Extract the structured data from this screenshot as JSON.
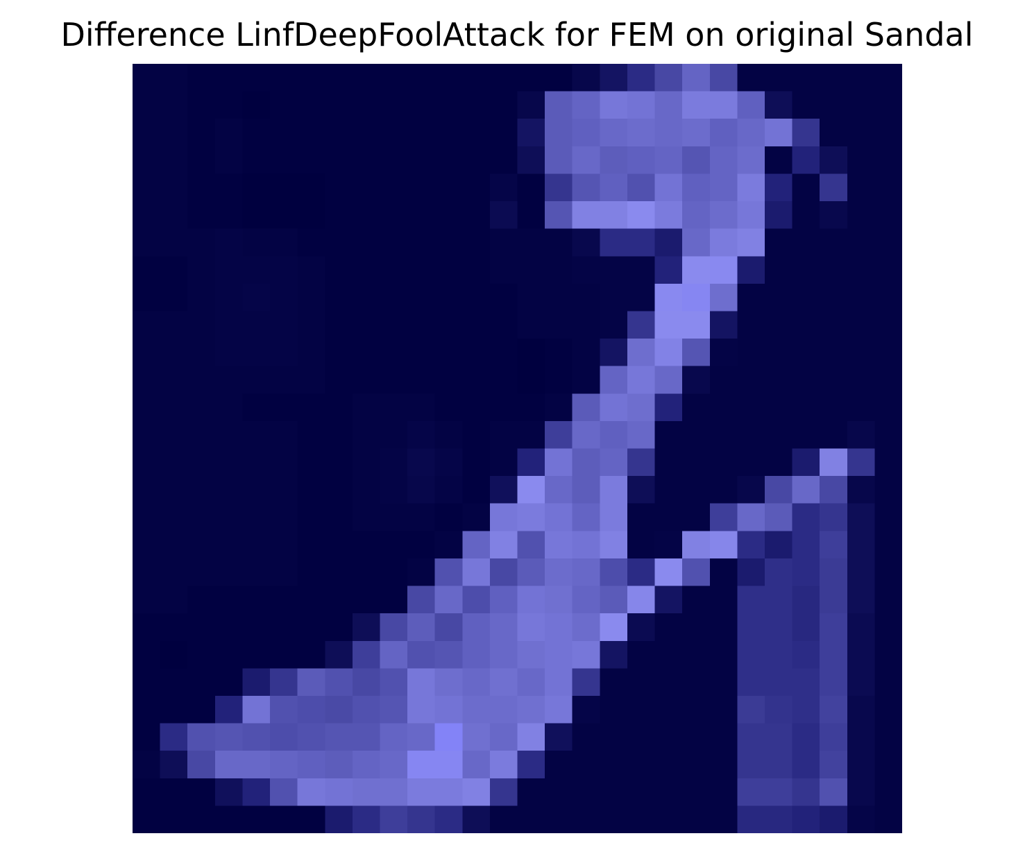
{
  "figure": {
    "title": "Difference LinfDeepFoolAttack for FEM on original Sandal"
  },
  "colors": {
    "low": "#00003f",
    "mid": "#22227a",
    "high": "#8a8aee",
    "peak": "#7b7bff"
  },
  "chart_data": {
    "type": "heatmap",
    "title": "Difference LinfDeepFoolAttack for FEM on original Sandal",
    "rows": 28,
    "cols": 28,
    "value_range": [
      0,
      1
    ],
    "axes_visible": false,
    "colormap": "dark-navy-to-light-blue",
    "values": [
      [
        0.02,
        0.02,
        0.01,
        0.01,
        0.01,
        0.01,
        0.01,
        0.01,
        0.01,
        0.01,
        0.01,
        0.01,
        0.01,
        0.01,
        0.01,
        0.01,
        0.05,
        0.15,
        0.3,
        0.45,
        0.6,
        0.45,
        0.02,
        0.02,
        0.02,
        0.02,
        0.02,
        0.02
      ],
      [
        0.02,
        0.02,
        0.01,
        0.01,
        0.0,
        0.01,
        0.01,
        0.01,
        0.01,
        0.01,
        0.01,
        0.01,
        0.01,
        0.01,
        0.05,
        0.55,
        0.6,
        0.7,
        0.68,
        0.62,
        0.72,
        0.72,
        0.58,
        0.1,
        0.02,
        0.02,
        0.02,
        0.02
      ],
      [
        0.02,
        0.02,
        0.01,
        0.02,
        0.01,
        0.01,
        0.01,
        0.01,
        0.01,
        0.01,
        0.01,
        0.01,
        0.01,
        0.01,
        0.15,
        0.55,
        0.58,
        0.62,
        0.64,
        0.62,
        0.64,
        0.58,
        0.62,
        0.68,
        0.35,
        0.02,
        0.02,
        0.02
      ],
      [
        0.02,
        0.02,
        0.01,
        0.02,
        0.01,
        0.01,
        0.01,
        0.01,
        0.01,
        0.01,
        0.01,
        0.01,
        0.01,
        0.01,
        0.1,
        0.55,
        0.62,
        0.56,
        0.58,
        0.6,
        0.52,
        0.6,
        0.64,
        0.02,
        0.25,
        0.1,
        0.02,
        0.02
      ],
      [
        0.02,
        0.02,
        0.01,
        0.01,
        0.0,
        0.0,
        0.0,
        0.01,
        0.01,
        0.01,
        0.01,
        0.01,
        0.01,
        0.04,
        0.01,
        0.35,
        0.52,
        0.58,
        0.5,
        0.68,
        0.58,
        0.6,
        0.72,
        0.25,
        0.02,
        0.35,
        0.02,
        0.02
      ],
      [
        0.02,
        0.02,
        0.01,
        0.01,
        0.0,
        0.0,
        0.0,
        0.01,
        0.01,
        0.01,
        0.01,
        0.01,
        0.01,
        0.08,
        0.01,
        0.52,
        0.75,
        0.75,
        0.8,
        0.72,
        0.6,
        0.64,
        0.7,
        0.2,
        0.02,
        0.06,
        0.02,
        0.02
      ],
      [
        0.02,
        0.02,
        0.02,
        0.03,
        0.02,
        0.02,
        0.01,
        0.01,
        0.01,
        0.01,
        0.01,
        0.01,
        0.01,
        0.02,
        0.02,
        0.02,
        0.06,
        0.3,
        0.3,
        0.2,
        0.62,
        0.72,
        0.75,
        0.02,
        0.02,
        0.02,
        0.02,
        0.02
      ],
      [
        0.01,
        0.01,
        0.02,
        0.03,
        0.03,
        0.03,
        0.02,
        0.01,
        0.01,
        0.01,
        0.01,
        0.01,
        0.01,
        0.02,
        0.02,
        0.02,
        0.03,
        0.03,
        0.03,
        0.25,
        0.8,
        0.82,
        0.2,
        0.02,
        0.02,
        0.02,
        0.02,
        0.02
      ],
      [
        0.01,
        0.01,
        0.02,
        0.03,
        0.04,
        0.03,
        0.02,
        0.01,
        0.01,
        0.01,
        0.01,
        0.01,
        0.01,
        0.01,
        0.02,
        0.02,
        0.02,
        0.03,
        0.03,
        0.82,
        0.85,
        0.65,
        0.02,
        0.02,
        0.02,
        0.02,
        0.02,
        0.02
      ],
      [
        0.02,
        0.02,
        0.02,
        0.03,
        0.03,
        0.03,
        0.02,
        0.01,
        0.01,
        0.01,
        0.01,
        0.01,
        0.01,
        0.01,
        0.02,
        0.02,
        0.02,
        0.03,
        0.35,
        0.8,
        0.8,
        0.15,
        0.02,
        0.02,
        0.02,
        0.02,
        0.02,
        0.02
      ],
      [
        0.02,
        0.02,
        0.02,
        0.03,
        0.03,
        0.03,
        0.02,
        0.01,
        0.01,
        0.01,
        0.01,
        0.01,
        0.01,
        0.01,
        0.0,
        0.01,
        0.02,
        0.15,
        0.65,
        0.76,
        0.52,
        0.03,
        0.02,
        0.02,
        0.02,
        0.02,
        0.02,
        0.02
      ],
      [
        0.02,
        0.02,
        0.02,
        0.02,
        0.02,
        0.02,
        0.02,
        0.01,
        0.01,
        0.01,
        0.01,
        0.01,
        0.01,
        0.01,
        0.0,
        0.01,
        0.02,
        0.6,
        0.7,
        0.62,
        0.06,
        0.02,
        0.02,
        0.02,
        0.02,
        0.02,
        0.02,
        0.02
      ],
      [
        0.02,
        0.02,
        0.02,
        0.02,
        0.01,
        0.01,
        0.01,
        0.01,
        0.02,
        0.02,
        0.02,
        0.01,
        0.01,
        0.01,
        0.01,
        0.02,
        0.55,
        0.68,
        0.65,
        0.25,
        0.02,
        0.02,
        0.02,
        0.02,
        0.02,
        0.02,
        0.02,
        0.02
      ],
      [
        0.02,
        0.02,
        0.02,
        0.02,
        0.02,
        0.02,
        0.01,
        0.01,
        0.02,
        0.02,
        0.04,
        0.02,
        0.01,
        0.02,
        0.02,
        0.4,
        0.62,
        0.58,
        0.62,
        0.02,
        0.02,
        0.02,
        0.02,
        0.02,
        0.02,
        0.02,
        0.05,
        0.02
      ],
      [
        0.02,
        0.02,
        0.02,
        0.02,
        0.02,
        0.02,
        0.01,
        0.01,
        0.02,
        0.03,
        0.06,
        0.04,
        0.01,
        0.02,
        0.25,
        0.68,
        0.56,
        0.6,
        0.35,
        0.02,
        0.02,
        0.02,
        0.02,
        0.02,
        0.2,
        0.75,
        0.35,
        0.02
      ],
      [
        0.02,
        0.02,
        0.02,
        0.02,
        0.02,
        0.02,
        0.01,
        0.01,
        0.02,
        0.03,
        0.05,
        0.03,
        0.01,
        0.12,
        0.8,
        0.62,
        0.56,
        0.72,
        0.1,
        0.02,
        0.02,
        0.02,
        0.05,
        0.45,
        0.62,
        0.45,
        0.05,
        0.02
      ],
      [
        0.02,
        0.02,
        0.02,
        0.02,
        0.02,
        0.02,
        0.01,
        0.01,
        0.02,
        0.02,
        0.02,
        0.01,
        0.02,
        0.7,
        0.72,
        0.68,
        0.6,
        0.72,
        0.02,
        0.02,
        0.02,
        0.4,
        0.62,
        0.55,
        0.3,
        0.35,
        0.1,
        0.02
      ],
      [
        0.02,
        0.02,
        0.02,
        0.02,
        0.02,
        0.02,
        0.01,
        0.01,
        0.01,
        0.01,
        0.01,
        0.02,
        0.6,
        0.75,
        0.5,
        0.7,
        0.68,
        0.75,
        0.02,
        0.03,
        0.75,
        0.78,
        0.3,
        0.2,
        0.3,
        0.4,
        0.1,
        0.02
      ],
      [
        0.02,
        0.02,
        0.02,
        0.02,
        0.02,
        0.02,
        0.01,
        0.01,
        0.01,
        0.01,
        0.02,
        0.5,
        0.7,
        0.45,
        0.55,
        0.64,
        0.62,
        0.48,
        0.3,
        0.8,
        0.5,
        0.02,
        0.2,
        0.32,
        0.3,
        0.38,
        0.1,
        0.02
      ],
      [
        0.02,
        0.02,
        0.01,
        0.01,
        0.01,
        0.01,
        0.01,
        0.01,
        0.01,
        0.01,
        0.45,
        0.62,
        0.48,
        0.58,
        0.68,
        0.66,
        0.6,
        0.55,
        0.78,
        0.15,
        0.02,
        0.02,
        0.32,
        0.32,
        0.28,
        0.38,
        0.1,
        0.02
      ],
      [
        0.01,
        0.01,
        0.01,
        0.01,
        0.01,
        0.01,
        0.01,
        0.01,
        0.1,
        0.45,
        0.56,
        0.45,
        0.58,
        0.62,
        0.7,
        0.68,
        0.64,
        0.8,
        0.08,
        0.02,
        0.02,
        0.02,
        0.32,
        0.32,
        0.28,
        0.4,
        0.08,
        0.02
      ],
      [
        0.01,
        0.0,
        0.01,
        0.01,
        0.01,
        0.01,
        0.01,
        0.1,
        0.4,
        0.6,
        0.5,
        0.52,
        0.58,
        0.62,
        0.66,
        0.68,
        0.7,
        0.15,
        0.02,
        0.02,
        0.02,
        0.02,
        0.32,
        0.32,
        0.3,
        0.4,
        0.08,
        0.02
      ],
      [
        0.01,
        0.01,
        0.01,
        0.01,
        0.2,
        0.35,
        0.55,
        0.5,
        0.45,
        0.5,
        0.7,
        0.65,
        0.62,
        0.66,
        0.62,
        0.68,
        0.35,
        0.02,
        0.02,
        0.02,
        0.02,
        0.02,
        0.32,
        0.32,
        0.32,
        0.4,
        0.08,
        0.02
      ],
      [
        0.01,
        0.01,
        0.01,
        0.25,
        0.68,
        0.5,
        0.48,
        0.46,
        0.5,
        0.52,
        0.7,
        0.68,
        0.64,
        0.64,
        0.66,
        0.7,
        0.04,
        0.02,
        0.02,
        0.02,
        0.02,
        0.02,
        0.38,
        0.34,
        0.32,
        0.42,
        0.06,
        0.02
      ],
      [
        0.01,
        0.3,
        0.5,
        0.52,
        0.5,
        0.48,
        0.5,
        0.52,
        0.52,
        0.6,
        0.62,
        0.9,
        0.66,
        0.62,
        0.75,
        0.12,
        0.02,
        0.02,
        0.02,
        0.02,
        0.02,
        0.02,
        0.35,
        0.35,
        0.3,
        0.4,
        0.06,
        0.02
      ],
      [
        0.02,
        0.1,
        0.45,
        0.62,
        0.62,
        0.6,
        0.58,
        0.56,
        0.6,
        0.62,
        0.85,
        0.85,
        0.62,
        0.72,
        0.3,
        0.02,
        0.02,
        0.02,
        0.02,
        0.02,
        0.02,
        0.02,
        0.35,
        0.35,
        0.3,
        0.42,
        0.06,
        0.02
      ],
      [
        0.01,
        0.01,
        0.01,
        0.12,
        0.25,
        0.5,
        0.7,
        0.68,
        0.66,
        0.66,
        0.72,
        0.72,
        0.75,
        0.35,
        0.02,
        0.02,
        0.02,
        0.02,
        0.02,
        0.02,
        0.02,
        0.02,
        0.4,
        0.4,
        0.35,
        0.5,
        0.06,
        0.02
      ],
      [
        0.01,
        0.01,
        0.01,
        0.01,
        0.01,
        0.01,
        0.01,
        0.2,
        0.3,
        0.4,
        0.35,
        0.3,
        0.1,
        0.02,
        0.02,
        0.02,
        0.02,
        0.02,
        0.02,
        0.02,
        0.02,
        0.02,
        0.28,
        0.28,
        0.25,
        0.2,
        0.04,
        0.02
      ]
    ]
  }
}
